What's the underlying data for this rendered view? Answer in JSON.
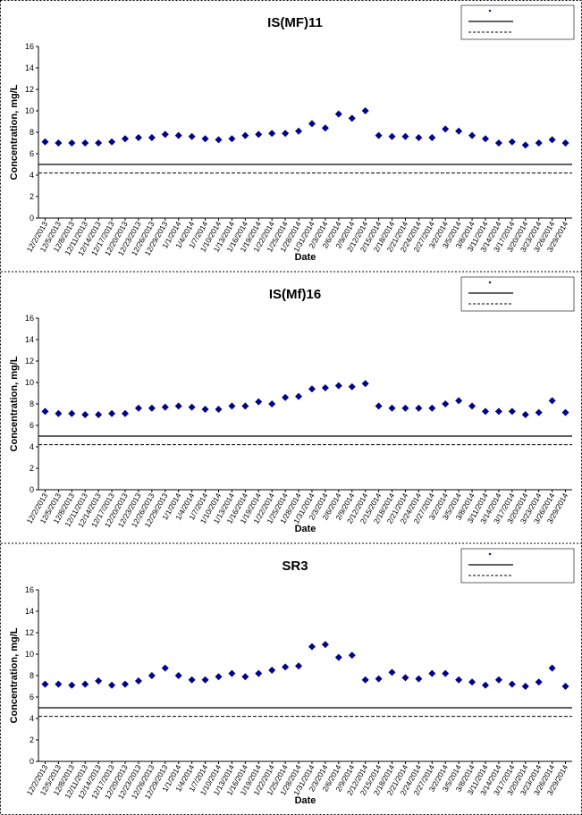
{
  "chart_data": [
    {
      "type": "scatter",
      "title": "IS(MF)11",
      "x_label": "Date",
      "y_label": "Concentration, mg/L",
      "color": "#00008b",
      "categories": [
        "12/2/2013",
        "12/5/2013",
        "12/8/2013",
        "12/11/2013",
        "12/14/2013",
        "12/17/2013",
        "12/20/2013",
        "12/23/2013",
        "12/26/2013",
        "12/29/2013",
        "1/1/2014",
        "1/4/2014",
        "1/7/2014",
        "1/10/2014",
        "1/13/2014",
        "1/16/2014",
        "1/19/2014",
        "1/22/2014",
        "1/25/2014",
        "1/28/2014",
        "1/31/2014",
        "2/3/2014",
        "2/6/2014",
        "2/9/2014",
        "2/12/2014",
        "2/15/2014",
        "2/18/2014",
        "2/21/2014",
        "2/24/2014",
        "2/27/2014",
        "3/2/2014",
        "3/5/2014",
        "3/8/2014",
        "3/11/2014",
        "3/14/2014",
        "3/17/2014",
        "3/20/2014",
        "3/23/2014",
        "3/26/2014",
        "3/29/2014"
      ],
      "values": [
        7.1,
        7.0,
        7.0,
        7.0,
        7.0,
        7.1,
        7.4,
        7.5,
        7.5,
        7.8,
        7.7,
        7.6,
        7.4,
        7.3,
        7.4,
        7.7,
        7.8,
        7.9,
        7.9,
        8.1,
        8.8,
        8.4,
        9.7,
        9.3,
        10.0,
        7.7,
        7.6,
        7.6,
        7.5,
        7.5,
        8.3,
        8.1,
        7.7,
        7.4,
        7.0,
        7.1,
        6.8,
        7.0,
        7.3,
        7.0
      ],
      "reference_lines": [
        {
          "value": 5,
          "style": "solid"
        },
        {
          "value": 4.2,
          "style": "dashed"
        }
      ],
      "ylim": [
        0,
        16
      ],
      "yticks": [
        0,
        2,
        4,
        6,
        8,
        10,
        12,
        14,
        16
      ]
    },
    {
      "type": "scatter",
      "title": "IS(Mf)16",
      "x_label": "Date",
      "y_label": "Concentration, mg/L",
      "color": "#00008b",
      "categories": [
        "12/2/2013",
        "12/5/2013",
        "12/8/2013",
        "12/11/2013",
        "12/14/2013",
        "12/17/2013",
        "12/20/2013",
        "12/23/2013",
        "12/26/2013",
        "12/29/2013",
        "1/1/2014",
        "1/4/2014",
        "1/7/2014",
        "1/10/2014",
        "1/13/2014",
        "1/16/2014",
        "1/19/2014",
        "1/22/2014",
        "1/25/2014",
        "1/28/2014",
        "1/31/2014",
        "2/3/2014",
        "2/6/2014",
        "2/9/2014",
        "2/12/2014",
        "2/15/2014",
        "2/18/2014",
        "2/21/2014",
        "2/24/2014",
        "2/27/2014",
        "3/2/2014",
        "3/5/2014",
        "3/8/2014",
        "3/11/2014",
        "3/14/2014",
        "3/17/2014",
        "3/20/2014",
        "3/23/2014",
        "3/26/2014",
        "3/29/2014"
      ],
      "values": [
        7.3,
        7.1,
        7.1,
        7.0,
        7.0,
        7.1,
        7.1,
        7.6,
        7.6,
        7.7,
        7.8,
        7.7,
        7.5,
        7.5,
        7.8,
        7.8,
        8.2,
        8.0,
        8.6,
        8.7,
        9.4,
        9.5,
        9.7,
        9.6,
        9.9,
        7.8,
        7.6,
        7.6,
        7.6,
        7.6,
        8.0,
        8.3,
        7.8,
        7.3,
        7.3,
        7.3,
        7.0,
        7.2,
        8.3,
        7.2
      ],
      "reference_lines": [
        {
          "value": 5,
          "style": "solid"
        },
        {
          "value": 4.2,
          "style": "dashed"
        }
      ],
      "ylim": [
        0,
        16
      ],
      "yticks": [
        0,
        2,
        4,
        6,
        8,
        10,
        12,
        14,
        16
      ]
    },
    {
      "type": "scatter",
      "title": "SR3",
      "x_label": "Date",
      "y_label": "Concentration, mg/L",
      "color": "#00008b",
      "categories": [
        "12/2/2013",
        "12/5/2013",
        "12/8/2013",
        "12/11/2013",
        "12/14/2013",
        "12/17/2013",
        "12/20/2013",
        "12/23/2013",
        "12/26/2013",
        "12/29/2013",
        "1/1/2014",
        "1/4/2014",
        "1/7/2014",
        "1/10/2014",
        "1/13/2014",
        "1/16/2014",
        "1/19/2014",
        "1/22/2014",
        "1/25/2014",
        "1/28/2014",
        "1/31/2014",
        "2/3/2014",
        "2/6/2014",
        "2/9/2014",
        "2/12/2014",
        "2/15/2014",
        "2/18/2014",
        "2/21/2014",
        "2/24/2014",
        "2/27/2014",
        "3/2/2014",
        "3/5/2014",
        "3/8/2014",
        "3/11/2014",
        "3/14/2014",
        "3/17/2014",
        "3/20/2014",
        "3/23/2014",
        "3/26/2014",
        "3/29/2014"
      ],
      "values": [
        7.2,
        7.2,
        7.1,
        7.2,
        7.5,
        7.1,
        7.2,
        7.5,
        8.0,
        8.7,
        8.0,
        7.6,
        7.6,
        7.9,
        8.2,
        7.9,
        8.2,
        8.5,
        8.8,
        8.9,
        10.7,
        10.9,
        9.7,
        9.9,
        7.6,
        7.7,
        8.3,
        7.8,
        7.7,
        8.2,
        8.2,
        7.6,
        7.4,
        7.1,
        7.6,
        7.2,
        7.0,
        7.4,
        8.7,
        7.0
      ],
      "reference_lines": [
        {
          "value": 5,
          "style": "solid"
        },
        {
          "value": 4.2,
          "style": "dashed"
        }
      ],
      "ylim": [
        0,
        16
      ],
      "yticks": [
        0,
        2,
        4,
        6,
        8,
        10,
        12,
        14,
        16
      ]
    }
  ]
}
